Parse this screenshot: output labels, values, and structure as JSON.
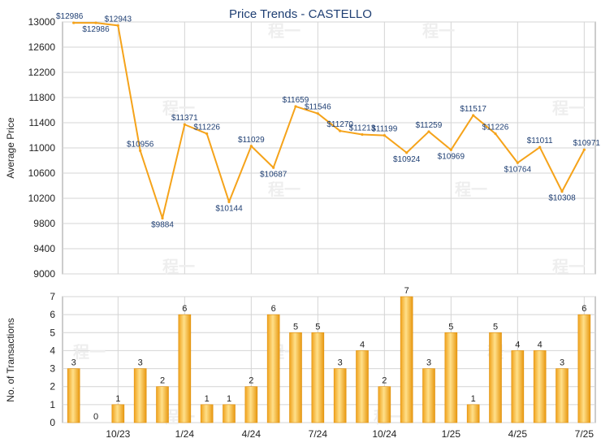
{
  "chart_data": [
    {
      "type": "line",
      "title": "Price Trends - CASTELLO",
      "ylabel": "Average Price",
      "ylim": [
        9000,
        13000
      ],
      "yticks": [
        9000,
        9400,
        9800,
        10200,
        10600,
        11000,
        11400,
        11800,
        12200,
        12600,
        13000
      ],
      "color": "#f5a31a",
      "series": [
        {
          "values": [
            12986,
            12986,
            12943,
            10956,
            9884,
            11371,
            11226,
            10144,
            11029,
            10687,
            11659,
            11546,
            11270,
            11213,
            11199,
            10924,
            11259,
            10969,
            11517,
            11226,
            10764,
            11011,
            10308,
            10971
          ]
        }
      ],
      "labels": [
        "$12986",
        "$12986",
        "$12943",
        "$10956",
        "$9884",
        "$11371",
        "$11226",
        "$10144",
        "$11029",
        "$10687",
        "$11659",
        "$11546",
        "$11270",
        "$11213",
        "$11199",
        "$10924",
        "$11259",
        "$10969",
        "$11517",
        "$11226",
        "$10764",
        "$11011",
        "$10308",
        "$10971"
      ],
      "grid": true
    },
    {
      "type": "bar",
      "ylabel": "No. of Transactions",
      "ylim": [
        0,
        7
      ],
      "yticks": [
        0,
        1,
        2,
        3,
        4,
        5,
        6,
        7
      ],
      "values": [
        3,
        0,
        1,
        3,
        2,
        6,
        1,
        1,
        2,
        6,
        5,
        5,
        3,
        4,
        2,
        7,
        3,
        5,
        1,
        5,
        4,
        4,
        3,
        6
      ],
      "xtick_labels": [
        "10/23",
        "1/24",
        "4/24",
        "7/24",
        "10/24",
        "1/25",
        "4/25",
        "7/25"
      ],
      "xtick_index": [
        2,
        5,
        8,
        11,
        14,
        17,
        20,
        23
      ],
      "grid": true
    }
  ]
}
